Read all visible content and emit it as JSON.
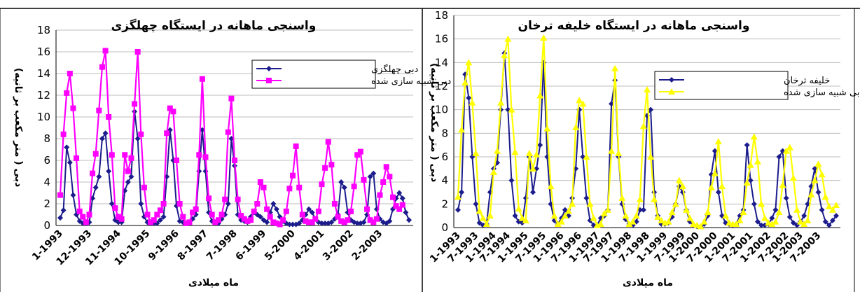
{
  "chart_data": [
    {
      "type": "line",
      "title": "واسنجی ماهانه در ایستگاه چهلگزی",
      "xlabel": "ماه میلادی",
      "ylabel": "دبی ( متر مکعب بر ثانیه)",
      "ylim": [
        0,
        18
      ],
      "yticks": [
        "0",
        "2",
        "4",
        "6",
        "8",
        "10",
        "12",
        "14",
        "16",
        "18"
      ],
      "xticks": [
        "1-1993",
        "12-1993",
        "11-1994",
        "10-1995",
        "9-1996",
        "8-1997",
        "7-1998",
        "6-1999",
        "5-2000",
        "4-2001",
        "3-2002",
        "2-2003"
      ],
      "grid": true,
      "legend_position": "top-right",
      "series": [
        {
          "name": "دبی چهلگزی",
          "color": "#1c1c8c",
          "marker": "diamond",
          "values": [
            0.7,
            1.4,
            7.2,
            5.8,
            2.8,
            1.0,
            0.4,
            0.2,
            0.2,
            0.3,
            2.5,
            3.5,
            4.5,
            8.0,
            8.5,
            5.0,
            2.0,
            0.5,
            0.3,
            0.3,
            3.2,
            4.0,
            4.5,
            10.5,
            8.0,
            2.0,
            0.8,
            0.3,
            0.2,
            0.2,
            0.2,
            0.5,
            0.8,
            4.5,
            8.8,
            6.0,
            1.8,
            0.4,
            0.3,
            0.2,
            0.2,
            0.6,
            1.0,
            5.0,
            8.8,
            5.0,
            1.2,
            0.4,
            0.3,
            0.2,
            0.6,
            1.0,
            2.0,
            8.0,
            5.5,
            1.0,
            0.5,
            0.4,
            0.3,
            0.8,
            1.2,
            1.0,
            0.8,
            0.5,
            0.3,
            1.2,
            2.0,
            1.5,
            0.8,
            0.4,
            0.2,
            0.1,
            0.1,
            0.1,
            0.2,
            0.5,
            1.0,
            1.5,
            1.2,
            0.6,
            0.3,
            0.2,
            0.2,
            0.2,
            0.3,
            0.6,
            1.0,
            4.0,
            3.5,
            1.2,
            0.5,
            0.3,
            0.2,
            0.2,
            0.3,
            1.0,
            4.5,
            4.8,
            1.5,
            0.6,
            0.3,
            0.2,
            0.4,
            1.5,
            2.5,
            3.0,
            2.5,
            1.2,
            0.5
          ]
        },
        {
          "name": "دبی شبیه سازی شده",
          "color": "#ff00ff",
          "marker": "square",
          "values": [
            2.8,
            8.4,
            12.2,
            14.0,
            10.8,
            6.2,
            1.3,
            0.8,
            0.3,
            1.0,
            4.8,
            6.6,
            10.6,
            14.6,
            16.1,
            10.0,
            6.5,
            1.6,
            0.8,
            0.6,
            6.5,
            5.0,
            6.2,
            11.2,
            16.0,
            8.4,
            3.5,
            1.0,
            0.3,
            0.5,
            1.0,
            1.4,
            2.0,
            8.5,
            10.8,
            10.5,
            6.0,
            2.0,
            0.8,
            0.2,
            0.3,
            1.2,
            1.5,
            6.5,
            13.5,
            6.3,
            2.5,
            1.0,
            0.3,
            0.5,
            1.0,
            2.4,
            8.6,
            11.7,
            6.0,
            2.4,
            0.9,
            0.6,
            0.4,
            0.5,
            1.3,
            2.0,
            4.0,
            3.5,
            1.5,
            0.8,
            0.3,
            0.2,
            0.1,
            0.5,
            1.3,
            3.4,
            4.6,
            7.3,
            3.5,
            1.0,
            0.4,
            0.3,
            0.3,
            0.6,
            1.3,
            3.8,
            5.3,
            7.7,
            5.6,
            2.0,
            0.8,
            0.4,
            0.3,
            0.5,
            1.3,
            3.6,
            6.5,
            6.8,
            4.2,
            1.5,
            0.5,
            0.3,
            0.6,
            2.8,
            4.0,
            5.4,
            4.5,
            2.6,
            1.8,
            1.5,
            1.9
          ]
        }
      ]
    },
    {
      "type": "line",
      "title": "واسنجی ماهانه در ایستگاه خلیفه ترخان",
      "xlabel": "ماه میلادی",
      "ylabel": "دبی ( متر مکعب بر ثانیه)",
      "ylim": [
        0,
        18
      ],
      "yticks": [
        "0",
        "2",
        "4",
        "6",
        "8",
        "10",
        "12",
        "14",
        "16",
        "18"
      ],
      "xticks": [
        "1-1993",
        "7-1993",
        "1-1994",
        "7-1994",
        "1-1995",
        "7-1995",
        "1-1996",
        "7-1996",
        "1-1997",
        "7-1997",
        "1-1998",
        "7-1998",
        "1-1999",
        "7-1999",
        "1-2000",
        "7-2000",
        "1-2001",
        "7-2001",
        "1-2002",
        "7-2002",
        "1-2003",
        "7-2003"
      ],
      "grid": true,
      "legend_position": "top-right",
      "series": [
        {
          "name": "خلیفه ترخان",
          "color": "#1c1c8c",
          "marker": "diamond",
          "values": [
            1.5,
            3.0,
            13.0,
            11.0,
            6.0,
            2.0,
            0.4,
            0.2,
            0.3,
            3.0,
            5.0,
            5.5,
            10.0,
            14.8,
            10.0,
            4.0,
            1.0,
            0.5,
            0.4,
            2.5,
            6.0,
            3.0,
            5.0,
            7.0,
            14.0,
            6.0,
            2.0,
            0.6,
            0.3,
            0.8,
            1.5,
            1.0,
            2.5,
            5.0,
            10.0,
            6.0,
            2.5,
            0.6,
            0.2,
            0.2,
            0.8,
            1.0,
            1.5,
            10.5,
            12.5,
            6.0,
            2.0,
            0.7,
            0.3,
            0.2,
            0.5,
            1.5,
            1.5,
            9.5,
            10.0,
            3.0,
            1.0,
            0.3,
            0.3,
            0.4,
            0.9,
            2.0,
            3.5,
            3.0,
            1.5,
            0.5,
            0.2,
            0.1,
            0.1,
            0.3,
            1.0,
            4.5,
            6.5,
            3.0,
            1.0,
            0.4,
            0.3,
            0.2,
            0.3,
            1.0,
            1.5,
            7.0,
            4.0,
            2.0,
            0.5,
            0.2,
            0.2,
            0.3,
            0.8,
            1.5,
            6.0,
            6.5,
            2.5,
            0.9,
            0.4,
            0.2,
            0.5,
            1.0,
            2.0,
            3.5,
            5.0,
            3.0,
            1.5,
            0.5,
            0.2,
            0.6,
            1.0
          ]
        },
        {
          "name": "دبی شبیه سازی شده",
          "color": "#ffff00",
          "marker": "triangle",
          "values": [
            2.6,
            8.3,
            12.3,
            14.0,
            10.6,
            6.3,
            1.4,
            0.8,
            0.3,
            1.0,
            4.7,
            6.5,
            10.6,
            14.6,
            16.0,
            10.0,
            6.4,
            1.6,
            0.8,
            0.6,
            6.3,
            5.0,
            6.2,
            11.2,
            16.1,
            8.4,
            3.5,
            1.0,
            0.3,
            0.5,
            1.0,
            1.4,
            2.0,
            8.5,
            10.8,
            10.5,
            6.0,
            2.0,
            0.8,
            0.2,
            0.3,
            1.2,
            1.5,
            6.5,
            13.5,
            6.3,
            2.5,
            1.0,
            0.3,
            0.5,
            1.0,
            2.4,
            8.6,
            11.7,
            6.0,
            2.4,
            0.9,
            0.6,
            0.4,
            0.5,
            1.3,
            2.0,
            4.0,
            3.5,
            1.5,
            0.8,
            0.3,
            0.2,
            0.1,
            0.5,
            1.3,
            3.4,
            4.6,
            7.3,
            3.5,
            1.0,
            0.4,
            0.3,
            0.3,
            0.6,
            1.3,
            3.8,
            5.3,
            7.7,
            5.6,
            2.0,
            0.8,
            0.4,
            0.3,
            0.5,
            1.3,
            3.6,
            6.5,
            6.8,
            4.2,
            1.5,
            0.5,
            0.3,
            0.6,
            2.8,
            4.0,
            5.4,
            4.5,
            2.6,
            1.8,
            1.5,
            1.9
          ]
        }
      ]
    }
  ]
}
